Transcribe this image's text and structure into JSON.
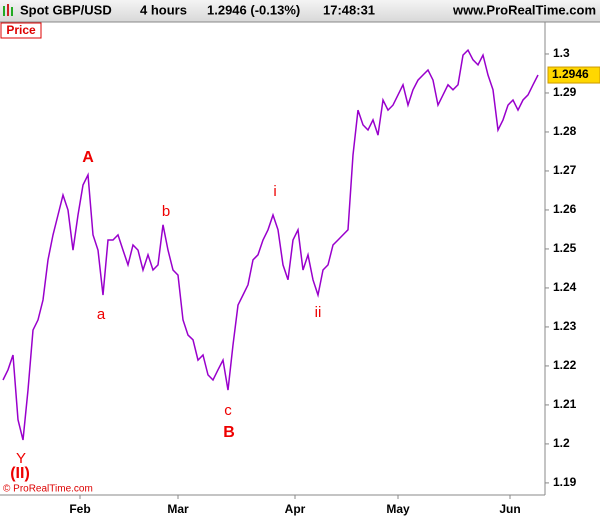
{
  "header": {
    "symbol": "Spot GBP/USD",
    "interval": "4 hours",
    "quote": "1.2946 (-0.13%)",
    "time": "17:48:31",
    "site": "www.ProRealTime.com"
  },
  "panel_label": "Price",
  "footer": "© ProRealTime.com",
  "chart_data": {
    "type": "line",
    "series": [
      {
        "name": "Price",
        "color": "#9900cc",
        "values": [
          1.2164,
          1.219,
          1.2228,
          1.2062,
          1.201,
          1.2138,
          1.2292,
          1.2318,
          1.2369,
          1.2472,
          1.2536,
          1.2587,
          1.2638,
          1.26,
          1.2497,
          1.2587,
          1.2664,
          1.269,
          1.2536,
          1.2497,
          1.2382,
          1.2523,
          1.2523,
          1.2536,
          1.2497,
          1.2459,
          1.251,
          1.2497,
          1.2446,
          1.2485,
          1.2446,
          1.2459,
          1.2562,
          1.2497,
          1.2446,
          1.2433,
          1.2318,
          1.2279,
          1.2267,
          1.2215,
          1.2228,
          1.2177,
          1.2164,
          1.219,
          1.2215,
          1.2138,
          1.2254,
          1.2356,
          1.2382,
          1.2408,
          1.2472,
          1.2485,
          1.2523,
          1.2549,
          1.2587,
          1.2549,
          1.2459,
          1.2421,
          1.2523,
          1.2549,
          1.2446,
          1.2485,
          1.2421,
          1.2382,
          1.2446,
          1.2459,
          1.251,
          1.2523,
          1.2536,
          1.2549,
          1.2741,
          1.2856,
          1.2818,
          1.2805,
          1.2831,
          1.2792,
          1.2882,
          1.2856,
          1.2869,
          1.2895,
          1.2921,
          1.2869,
          1.2908,
          1.2933,
          1.2946,
          1.2959,
          1.2933,
          1.2869,
          1.2895,
          1.2921,
          1.2908,
          1.2921,
          1.2997,
          1.301,
          1.2985,
          1.2972,
          1.2997,
          1.2946,
          1.2908,
          1.2805,
          1.2831,
          1.2869,
          1.2882,
          1.2856,
          1.2882,
          1.2895,
          1.2921,
          1.2946
        ]
      }
    ],
    "xlim": [
      -0.6,
      108.4
    ],
    "xticks": [
      {
        "value": 15.4,
        "label": "Feb"
      },
      {
        "value": 35,
        "label": "Mar"
      },
      {
        "value": 58.4,
        "label": "Apr"
      },
      {
        "value": 79,
        "label": "May"
      },
      {
        "value": 101.4,
        "label": "Jun"
      }
    ],
    "ylim": [
      1.1869,
      1.3082
    ],
    "yticks": [
      1.19,
      1.2,
      1.21,
      1.22,
      1.23,
      1.24,
      1.25,
      1.26,
      1.27,
      1.28,
      1.29,
      1.3
    ],
    "annotations": [
      "A",
      "a",
      "b",
      "c",
      "B",
      "i",
      "ii",
      "Y",
      "(II)"
    ]
  }
}
